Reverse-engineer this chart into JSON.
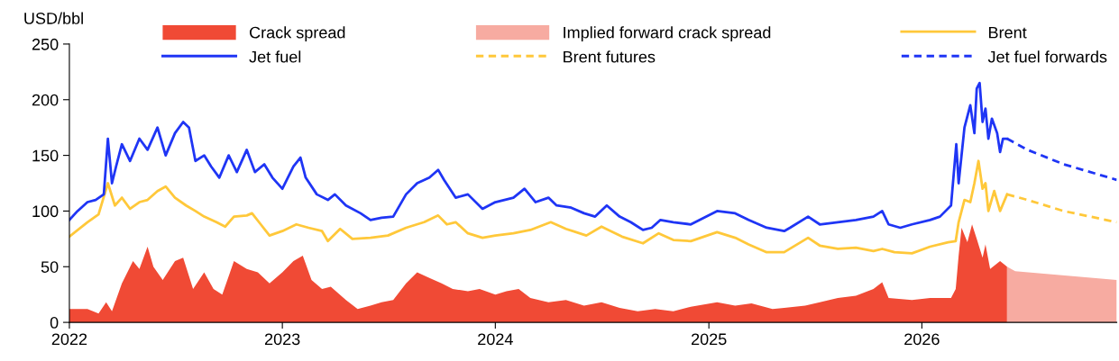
{
  "chart_data": {
    "type": "line",
    "ylabel": "USD/bbl",
    "xlim": [
      "2022-01-01",
      "2026-12-01"
    ],
    "xticks": [
      {
        "value": "2022-01-01",
        "label": "2022"
      },
      {
        "value": "2023-01-01",
        "label": "2023"
      },
      {
        "value": "2024-01-01",
        "label": "2024"
      },
      {
        "value": "2025-01-01",
        "label": "2025"
      },
      {
        "value": "2026-01-01",
        "label": "2026"
      }
    ],
    "ylim": [
      0,
      250
    ],
    "yticks": [
      0,
      50,
      100,
      150,
      200,
      250
    ],
    "grid": false,
    "legend": "top",
    "series": [
      {
        "name": "Crack spread",
        "type": "area",
        "color": "#f04a35",
        "x": [
          "2022-01-01",
          "2022-02-01",
          "2022-02-20",
          "2022-03-05",
          "2022-03-15",
          "2022-04-01",
          "2022-04-20",
          "2022-05-01",
          "2022-05-15",
          "2022-05-25",
          "2022-06-10",
          "2022-07-01",
          "2022-07-15",
          "2022-08-01",
          "2022-08-20",
          "2022-09-05",
          "2022-09-20",
          "2022-10-10",
          "2022-11-01",
          "2022-11-20",
          "2022-12-10",
          "2023-01-01",
          "2023-01-20",
          "2023-02-05",
          "2023-02-20",
          "2023-03-10",
          "2023-03-25",
          "2023-04-20",
          "2023-05-10",
          "2023-06-01",
          "2023-06-20",
          "2023-07-10",
          "2023-08-01",
          "2023-08-20",
          "2023-09-10",
          "2023-10-01",
          "2023-10-20",
          "2023-11-15",
          "2023-12-05",
          "2024-01-01",
          "2024-01-20",
          "2024-02-10",
          "2024-03-01",
          "2024-04-01",
          "2024-05-01",
          "2024-06-01",
          "2024-07-01",
          "2024-08-01",
          "2024-09-01",
          "2024-10-01",
          "2024-11-01",
          "2024-12-01",
          "2025-01-15",
          "2025-02-15",
          "2025-03-15",
          "2025-04-20",
          "2025-05-10",
          "2025-06-15",
          "2025-07-10",
          "2025-08-10",
          "2025-09-10",
          "2025-10-10",
          "2025-10-25",
          "2025-11-05",
          "2025-12-15",
          "2026-01-15",
          "2026-02-20",
          "2026-02-28",
          "2026-03-05",
          "2026-03-10",
          "2026-03-20",
          "2026-03-28",
          "2026-04-05",
          "2026-04-15",
          "2026-04-20",
          "2026-04-28",
          "2026-05-15",
          "2026-05-27"
        ],
        "values": [
          12,
          12,
          8,
          18,
          10,
          35,
          55,
          48,
          68,
          50,
          38,
          55,
          58,
          30,
          45,
          30,
          25,
          55,
          48,
          45,
          35,
          45,
          55,
          60,
          38,
          30,
          32,
          20,
          12,
          15,
          18,
          20,
          35,
          45,
          40,
          35,
          30,
          28,
          30,
          25,
          28,
          30,
          22,
          18,
          20,
          15,
          18,
          13,
          10,
          12,
          10,
          14,
          18,
          15,
          17,
          12,
          13,
          15,
          18,
          22,
          24,
          30,
          36,
          22,
          20,
          22,
          22,
          30,
          60,
          85,
          72,
          88,
          75,
          58,
          70,
          48,
          55,
          50
        ]
      },
      {
        "name": "Implied forward crack spread",
        "type": "area",
        "color": "#f7aba1",
        "x": [
          "2026-05-27",
          "2026-06-10",
          "2026-12-01"
        ],
        "values": [
          50,
          46,
          38
        ]
      },
      {
        "name": "Brent",
        "color": "#ffc83a",
        "x": [
          "2022-01-01",
          "2022-02-01",
          "2022-02-20",
          "2022-03-08",
          "2022-03-20",
          "2022-04-01",
          "2022-04-15",
          "2022-05-01",
          "2022-05-15",
          "2022-06-01",
          "2022-06-15",
          "2022-07-01",
          "2022-07-20",
          "2022-08-05",
          "2022-08-20",
          "2022-09-10",
          "2022-09-25",
          "2022-10-10",
          "2022-11-01",
          "2022-11-10",
          "2022-11-25",
          "2022-12-10",
          "2023-01-01",
          "2023-01-25",
          "2023-02-15",
          "2023-03-10",
          "2023-03-20",
          "2023-04-10",
          "2023-05-01",
          "2023-06-01",
          "2023-07-01",
          "2023-08-01",
          "2023-09-01",
          "2023-09-25",
          "2023-10-10",
          "2023-10-25",
          "2023-11-15",
          "2023-12-10",
          "2024-01-01",
          "2024-02-01",
          "2024-03-01",
          "2024-04-05",
          "2024-05-01",
          "2024-06-05",
          "2024-07-01",
          "2024-08-05",
          "2024-09-10",
          "2024-10-07",
          "2024-11-01",
          "2024-12-01",
          "2025-01-15",
          "2025-02-15",
          "2025-03-10",
          "2025-04-10",
          "2025-05-10",
          "2025-06-20",
          "2025-07-10",
          "2025-08-10",
          "2025-09-10",
          "2025-10-10",
          "2025-10-25",
          "2025-11-15",
          "2025-12-15",
          "2026-01-15",
          "2026-02-15",
          "2026-02-28",
          "2026-03-05",
          "2026-03-15",
          "2026-03-25",
          "2026-04-01",
          "2026-04-08",
          "2026-04-15",
          "2026-04-20",
          "2026-04-25",
          "2026-05-05",
          "2026-05-15",
          "2026-05-27"
        ],
        "values": [
          77,
          90,
          97,
          125,
          105,
          112,
          102,
          108,
          110,
          118,
          122,
          112,
          105,
          100,
          95,
          90,
          86,
          95,
          96,
          98,
          88,
          78,
          82,
          88,
          85,
          82,
          73,
          84,
          75,
          76,
          78,
          85,
          90,
          96,
          88,
          90,
          80,
          76,
          78,
          80,
          83,
          90,
          84,
          78,
          86,
          77,
          71,
          80,
          74,
          73,
          81,
          76,
          70,
          63,
          63,
          76,
          69,
          66,
          67,
          64,
          66,
          63,
          62,
          68,
          72,
          73,
          90,
          110,
          108,
          125,
          145,
          120,
          125,
          100,
          118,
          100,
          115
        ]
      },
      {
        "name": "Jet fuel",
        "color": "#1f35f5",
        "x": [
          "2022-01-01",
          "2022-01-15",
          "2022-02-01",
          "2022-02-15",
          "2022-03-01",
          "2022-03-08",
          "2022-03-15",
          "2022-03-22",
          "2022-04-01",
          "2022-04-15",
          "2022-05-01",
          "2022-05-15",
          "2022-06-01",
          "2022-06-15",
          "2022-07-01",
          "2022-07-15",
          "2022-07-25",
          "2022-08-05",
          "2022-08-20",
          "2022-09-01",
          "2022-09-15",
          "2022-10-01",
          "2022-10-15",
          "2022-11-01",
          "2022-11-15",
          "2022-12-01",
          "2022-12-15",
          "2023-01-01",
          "2023-01-20",
          "2023-02-01",
          "2023-02-10",
          "2023-03-01",
          "2023-03-20",
          "2023-04-01",
          "2023-04-20",
          "2023-05-15",
          "2023-06-01",
          "2023-06-20",
          "2023-07-10",
          "2023-08-01",
          "2023-08-20",
          "2023-09-10",
          "2023-09-25",
          "2023-10-05",
          "2023-10-25",
          "2023-11-15",
          "2023-12-10",
          "2024-01-01",
          "2024-02-01",
          "2024-02-20",
          "2024-03-10",
          "2024-04-01",
          "2024-04-15",
          "2024-05-10",
          "2024-06-01",
          "2024-06-20",
          "2024-07-10",
          "2024-08-01",
          "2024-08-20",
          "2024-09-10",
          "2024-09-25",
          "2024-10-10",
          "2024-11-01",
          "2024-12-01",
          "2025-01-15",
          "2025-02-15",
          "2025-03-10",
          "2025-04-10",
          "2025-05-10",
          "2025-05-20",
          "2025-06-20",
          "2025-07-10",
          "2025-08-10",
          "2025-09-10",
          "2025-10-10",
          "2025-10-25",
          "2025-11-05",
          "2025-11-25",
          "2025-12-15",
          "2026-01-15",
          "2026-02-01",
          "2026-02-20",
          "2026-03-01",
          "2026-03-05",
          "2026-03-15",
          "2026-03-25",
          "2026-04-01",
          "2026-04-05",
          "2026-04-10",
          "2026-04-15",
          "2026-04-20",
          "2026-04-25",
          "2026-05-01",
          "2026-05-10",
          "2026-05-15",
          "2026-05-20",
          "2026-05-27"
        ],
        "values": [
          92,
          100,
          108,
          110,
          115,
          165,
          125,
          140,
          160,
          145,
          165,
          155,
          175,
          150,
          170,
          180,
          175,
          145,
          150,
          140,
          130,
          150,
          135,
          155,
          135,
          142,
          130,
          120,
          140,
          148,
          130,
          115,
          110,
          115,
          105,
          98,
          92,
          94,
          95,
          115,
          125,
          130,
          137,
          128,
          112,
          115,
          102,
          108,
          112,
          120,
          108,
          112,
          105,
          103,
          98,
          95,
          105,
          95,
          90,
          83,
          85,
          92,
          90,
          88,
          100,
          98,
          92,
          85,
          82,
          85,
          95,
          88,
          90,
          92,
          95,
          100,
          88,
          85,
          88,
          92,
          95,
          105,
          160,
          125,
          175,
          195,
          170,
          210,
          215,
          180,
          192,
          165,
          183,
          170,
          153,
          165,
          165
        ]
      },
      {
        "name": "Brent futures",
        "line_style": "dashed",
        "color": "#ffc83a",
        "x": [
          "2026-05-27",
          "2026-07-01",
          "2026-09-01",
          "2026-12-01"
        ],
        "values": [
          115,
          110,
          100,
          90
        ]
      },
      {
        "name": "Jet fuel forwards",
        "line_style": "dashed",
        "color": "#1f35f5",
        "x": [
          "2026-05-27",
          "2026-07-01",
          "2026-09-01",
          "2026-12-01"
        ],
        "values": [
          165,
          155,
          142,
          128
        ]
      }
    ]
  }
}
